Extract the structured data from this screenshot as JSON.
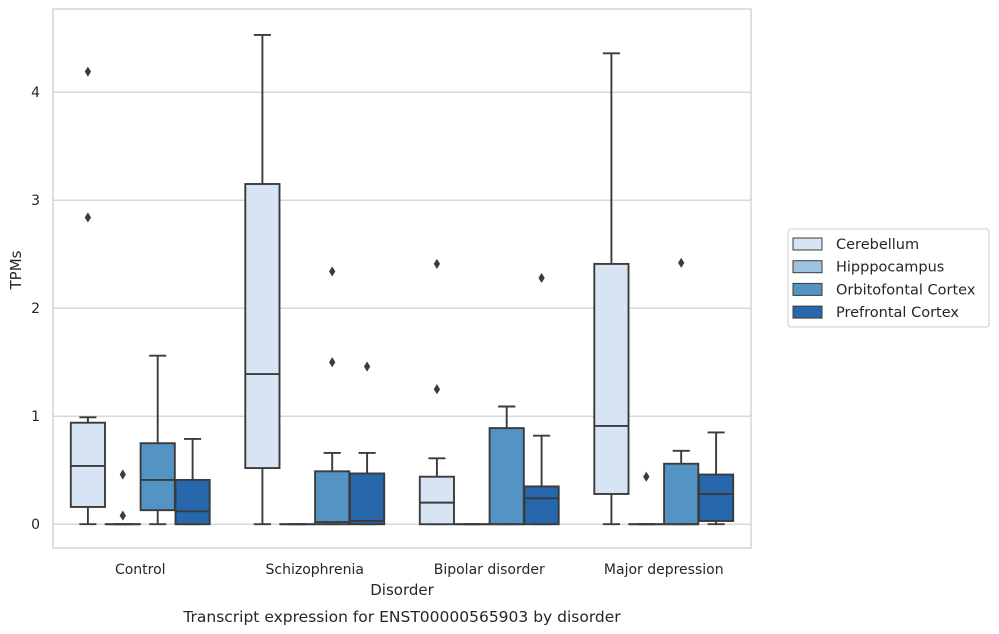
{
  "chart_data": {
    "type": "box",
    "title": "",
    "caption": "Transcript expression for ENST00000565903 by disorder",
    "xlabel": "Disorder",
    "ylabel": "TPMs",
    "ylim": [
      -0.22,
      4.77
    ],
    "yticks": [
      0,
      1,
      2,
      3,
      4
    ],
    "grid": "horizontal",
    "legend_position": "right",
    "categories": [
      "Control",
      "Schizophrenia",
      "Bipolar disorder",
      "Major depression"
    ],
    "series": [
      {
        "name": "Cerebellum",
        "color": "#d6e4f3",
        "boxes": [
          {
            "whisker_low": 0.0,
            "q1": 0.16,
            "median": 0.54,
            "q3": 0.94,
            "whisker_high": 0.99,
            "outliers": [
              2.84,
              4.19
            ]
          },
          {
            "whisker_low": 0.0,
            "q1": 0.52,
            "median": 1.39,
            "q3": 3.15,
            "whisker_high": 4.53,
            "outliers": []
          },
          {
            "whisker_low": 0.0,
            "q1": 0.0,
            "median": 0.2,
            "q3": 0.44,
            "whisker_high": 0.61,
            "outliers": [
              1.25,
              2.41
            ]
          },
          {
            "whisker_low": 0.0,
            "q1": 0.28,
            "median": 0.91,
            "q3": 2.41,
            "whisker_high": 4.36,
            "outliers": []
          }
        ]
      },
      {
        "name": "Hipppocampus",
        "color": "#9cc3e0",
        "boxes": [
          {
            "whisker_low": 0.0,
            "q1": 0.0,
            "median": 0.0,
            "q3": 0.0,
            "whisker_high": 0.0,
            "outliers": [
              0.08,
              0.46
            ]
          },
          {
            "whisker_low": 0.0,
            "q1": 0.0,
            "median": 0.0,
            "q3": 0.0,
            "whisker_high": 0.0,
            "outliers": []
          },
          {
            "whisker_low": 0.0,
            "q1": 0.0,
            "median": 0.0,
            "q3": 0.0,
            "whisker_high": 0.0,
            "outliers": []
          },
          {
            "whisker_low": 0.0,
            "q1": 0.0,
            "median": 0.0,
            "q3": 0.0,
            "whisker_high": 0.0,
            "outliers": [
              0.44
            ]
          }
        ]
      },
      {
        "name": "Orbitofontal Cortex",
        "color": "#5494c4",
        "boxes": [
          {
            "whisker_low": 0.0,
            "q1": 0.13,
            "median": 0.41,
            "q3": 0.75,
            "whisker_high": 1.56,
            "outliers": []
          },
          {
            "whisker_low": 0.0,
            "q1": 0.0,
            "median": 0.02,
            "q3": 0.49,
            "whisker_high": 0.66,
            "outliers": [
              1.5,
              2.34
            ]
          },
          {
            "whisker_low": 0.0,
            "q1": 0.0,
            "median": 0.0,
            "q3": 0.89,
            "whisker_high": 1.09,
            "outliers": []
          },
          {
            "whisker_low": 0.0,
            "q1": 0.0,
            "median": 0.0,
            "q3": 0.56,
            "whisker_high": 0.68,
            "outliers": [
              2.42
            ]
          }
        ]
      },
      {
        "name": "Prefrontal Cortex",
        "color": "#2668ab",
        "boxes": [
          {
            "whisker_low": 0.0,
            "q1": 0.0,
            "median": 0.12,
            "q3": 0.41,
            "whisker_high": 0.79,
            "outliers": []
          },
          {
            "whisker_low": 0.0,
            "q1": 0.0,
            "median": 0.03,
            "q3": 0.47,
            "whisker_high": 0.66,
            "outliers": [
              1.46
            ]
          },
          {
            "whisker_low": 0.0,
            "q1": 0.0,
            "median": 0.24,
            "q3": 0.35,
            "whisker_high": 0.82,
            "outliers": [
              2.28
            ]
          },
          {
            "whisker_low": 0.0,
            "q1": 0.03,
            "median": 0.28,
            "q3": 0.46,
            "whisker_high": 0.85,
            "outliers": []
          }
        ]
      }
    ]
  }
}
